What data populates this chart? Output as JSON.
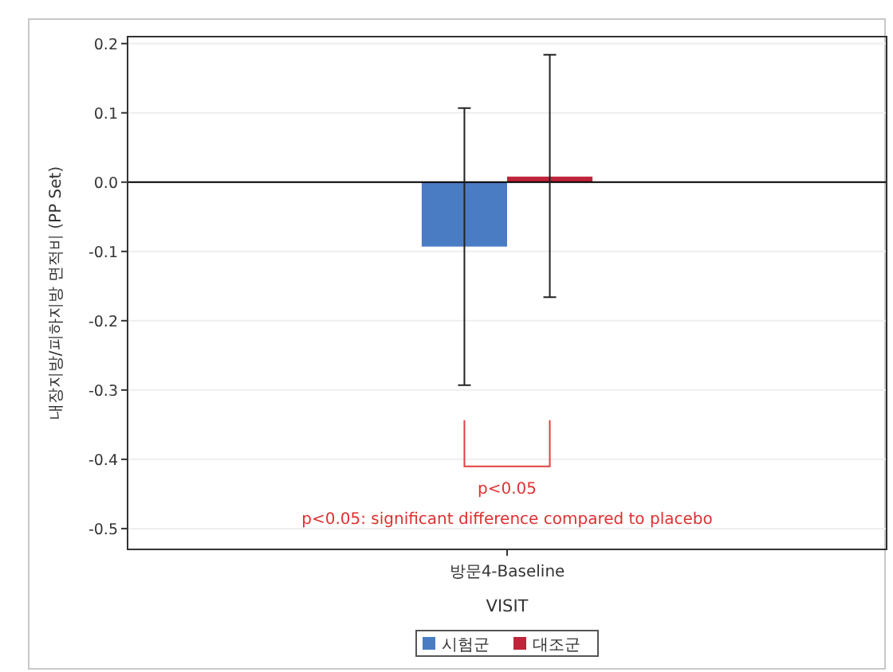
{
  "chart_data": {
    "type": "bar",
    "xlabel": "VISIT",
    "ylabel": "내장지방/피하지방 면적비 (PP Set)",
    "categories": [
      "방문4-Baseline"
    ],
    "series": [
      {
        "name": "시험군",
        "color": "#4a7cc4",
        "values": [
          -0.093
        ],
        "errors": [
          [
            -0.293,
            0.107
          ]
        ]
      },
      {
        "name": "대조군",
        "color": "#c0243a",
        "values": [
          0.008
        ],
        "errors": [
          [
            -0.166,
            0.184
          ]
        ]
      }
    ],
    "ylim": [
      -0.53,
      0.21
    ],
    "yticks": [
      {
        "value": 0.2,
        "label": "0.2"
      },
      {
        "value": 0.1,
        "label": "0.1"
      },
      {
        "value": 0,
        "label": "0.0"
      },
      {
        "value": -0.1,
        "label": "-0.1"
      },
      {
        "value": -0.2,
        "label": "-0.2"
      },
      {
        "value": -0.3,
        "label": "-0.3"
      },
      {
        "value": -0.4,
        "label": "-0.4"
      },
      {
        "value": -0.5,
        "label": "-0.5"
      }
    ],
    "ref_lines": [
      {
        "axis": "y",
        "value": 0,
        "color": "#000000"
      }
    ],
    "annotations": [
      "p<0.05",
      "p<0.05: significant difference compared to placebo"
    ],
    "grid": "y",
    "legend": "bottom"
  }
}
